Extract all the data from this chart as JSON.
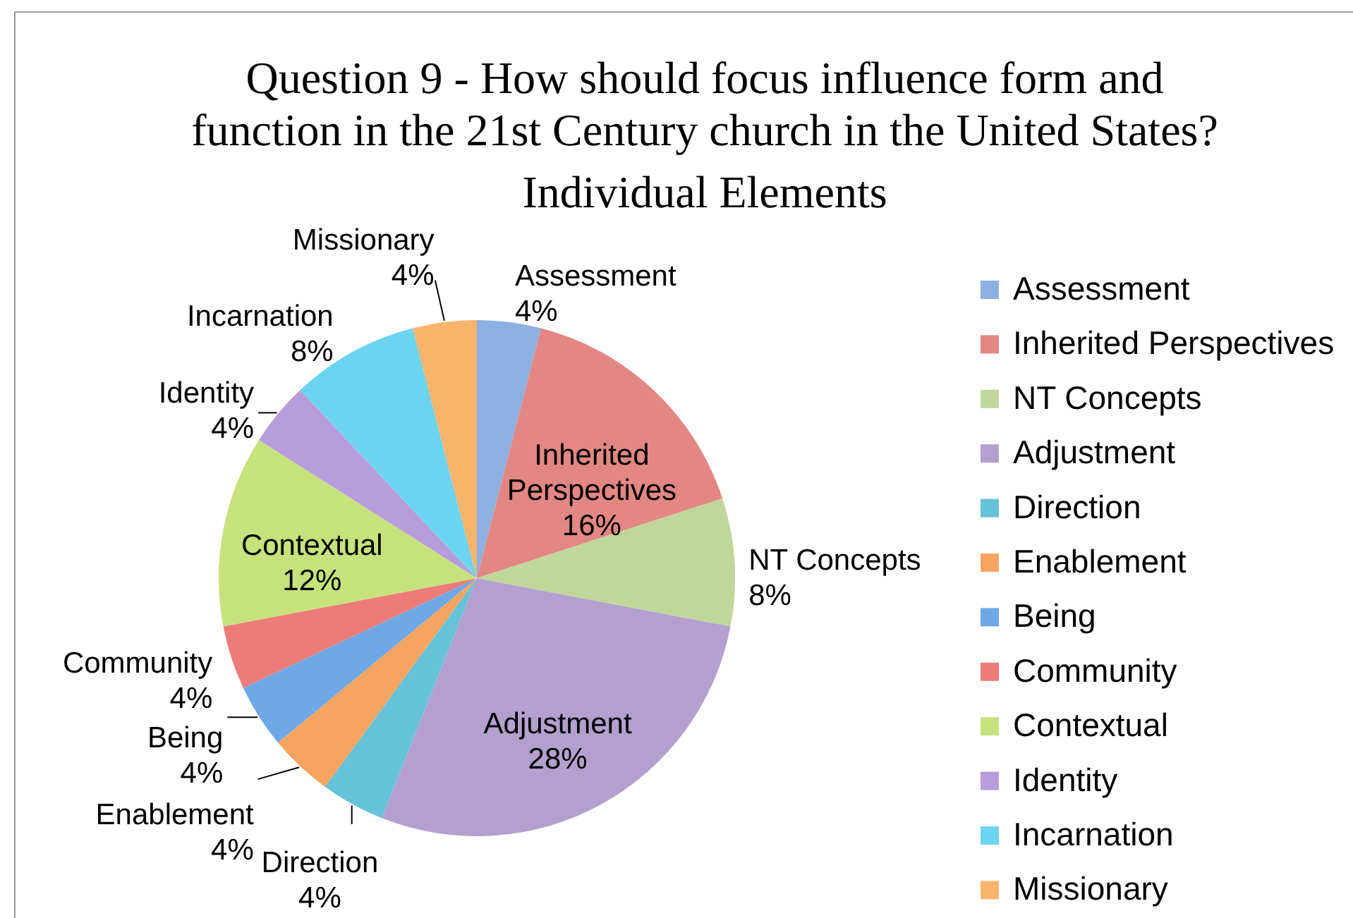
{
  "chart_data": {
    "type": "pie",
    "title": "Question 9 - How should focus influence form and\nfunction in the 21st Century church in the United States?",
    "subtitle": "Individual Elements",
    "categories": [
      "Assessment",
      "Inherited Perspectives",
      "NT Concepts",
      "Adjustment",
      "Direction",
      "Enablement",
      "Being",
      "Community",
      "Contextual",
      "Identity",
      "Incarnation",
      "Missionary"
    ],
    "values": [
      4,
      16,
      8,
      28,
      4,
      4,
      4,
      4,
      12,
      4,
      8,
      4
    ],
    "value_labels": [
      "4%",
      "16%",
      "8%",
      "28%",
      "4%",
      "4%",
      "4%",
      "4%",
      "12%",
      "4%",
      "8%",
      "4%"
    ],
    "colors": [
      "#8cb0e0",
      "#e28783",
      "#c0d79a",
      "#b3a0cf",
      "#66c2d8",
      "#f5a462",
      "#6ea8e6",
      "#ec7c78",
      "#c7e27d",
      "#b79ddb",
      "#6cd4ef",
      "#fbb46c"
    ],
    "legend": "right"
  }
}
